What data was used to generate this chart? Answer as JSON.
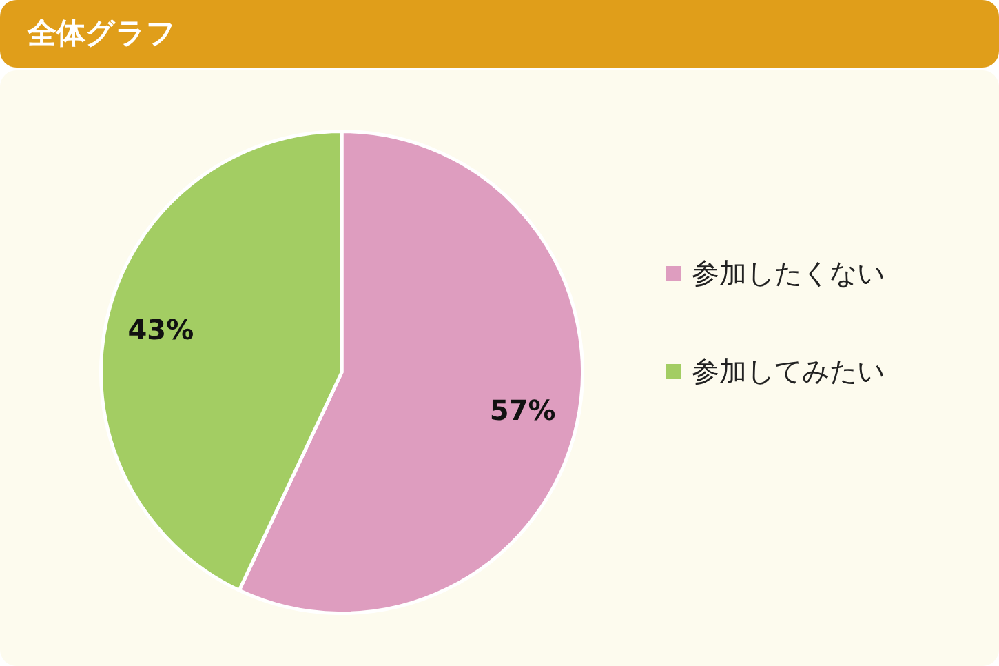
{
  "chart_data": {
    "type": "pie",
    "title": "全体グラフ",
    "categories": [
      "参加したくない",
      "参加してみたい"
    ],
    "values": [
      57,
      43
    ],
    "colors": [
      "#de9dbf",
      "#a3cd63"
    ],
    "value_labels": [
      "57%",
      "43%"
    ],
    "legend": "right"
  }
}
